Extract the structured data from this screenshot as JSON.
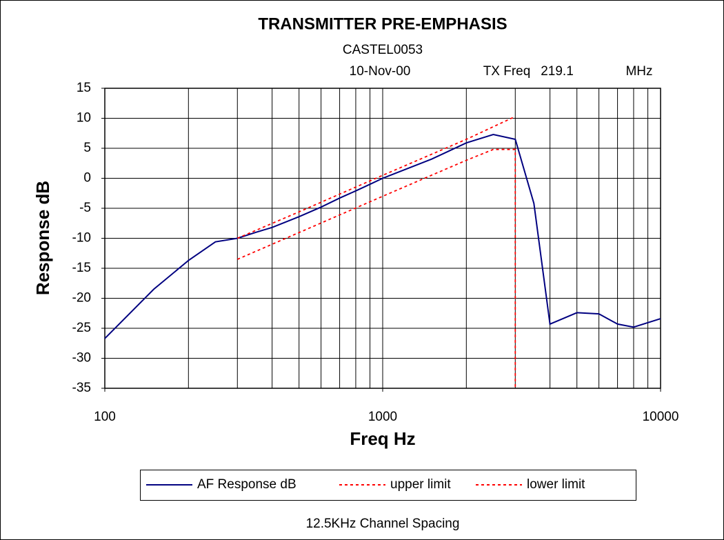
{
  "chart_data": {
    "type": "line",
    "title": "TRANSMITTER PRE-EMPHASIS",
    "subtitle": "CASTEL0053",
    "annotations": [
      "10-Nov-00",
      "TX Freq",
      "219.1",
      "MHz"
    ],
    "footer": "12.5KHz Channel Spacing",
    "x_label": "Freq Hz",
    "y_label": "Response dB",
    "x_scale": "log",
    "xlim": [
      100,
      10000
    ],
    "xticks": [
      100,
      1000,
      10000
    ],
    "xminorticks": [
      200,
      300,
      400,
      500,
      600,
      700,
      800,
      900,
      2000,
      3000,
      4000,
      5000,
      6000,
      7000,
      8000,
      9000
    ],
    "ylim": [
      -35,
      15
    ],
    "yticks": [
      -35,
      -30,
      -25,
      -20,
      -15,
      -10,
      -5,
      0,
      5,
      10,
      15
    ],
    "grid": true,
    "legend": "bottom",
    "series": [
      {
        "name": "AF Response dB",
        "color": "#000080",
        "dash": "solid",
        "x": [
          100,
          150,
          200,
          250,
          300,
          350,
          400,
          500,
          600,
          700,
          800,
          900,
          1000,
          1500,
          2000,
          2500,
          3000,
          3500,
          4000,
          5000,
          6000,
          7000,
          8000,
          10000
        ],
        "values": [
          -26.7,
          -18.5,
          -13.7,
          -10.6,
          -10,
          -9,
          -8.2,
          -6.4,
          -4.8,
          -3.3,
          -2.1,
          -1,
          0,
          3.2,
          5.9,
          7.3,
          6.5,
          -4.2,
          -24.3,
          -22.4,
          -22.6,
          -24.3,
          -24.8,
          -23.4
        ]
      },
      {
        "name": "upper limit",
        "color": "#ff0000",
        "dash": "dotted",
        "x": [
          300,
          500,
          1000,
          2000,
          3000
        ],
        "values": [
          -10,
          -5.6,
          0.5,
          6.5,
          10.3
        ]
      },
      {
        "name": "lower limit",
        "color": "#ff0000",
        "dash": "dotted",
        "x": [
          300,
          1000,
          2000,
          2500,
          3000,
          3000
        ],
        "values": [
          -13.5,
          -3,
          3,
          4.8,
          4.8,
          -35
        ]
      }
    ]
  }
}
